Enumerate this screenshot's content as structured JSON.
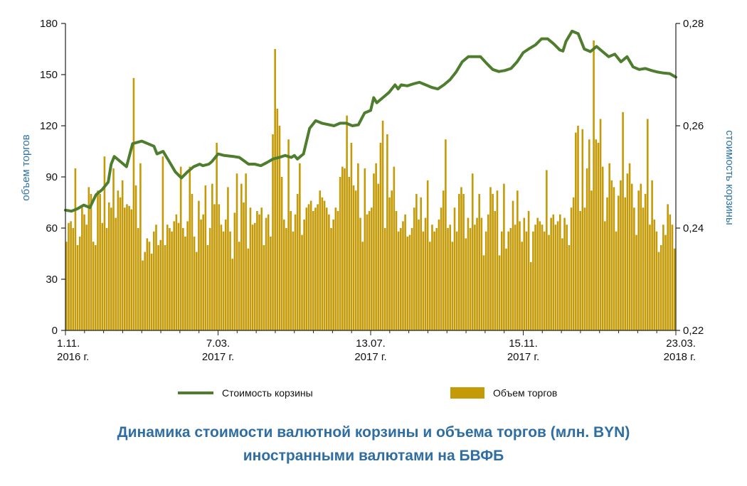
{
  "caption": {
    "line1": "Динамика стоимости валютной корзины и объема торгов (млн. BYN)",
    "line2": "иностранными валютами на БВФБ"
  },
  "colors": {
    "bars": "#c49a06",
    "line": "#4e7d2e",
    "axis_title": "#2e74a8",
    "caption": "#2f6ea3"
  },
  "chart_data": {
    "type": "bar",
    "title": "Динамика стоимости валютной корзины и объема торгов (млн. BYN) иностранными валютами на БВФБ",
    "ylabel_left": "объем торгов",
    "ylabel_right": "стоимость корзины",
    "ylim_left": [
      0,
      180
    ],
    "ylim_right": [
      0.22,
      0.28
    ],
    "left_ticks": [
      "0",
      "30",
      "60",
      "90",
      "120",
      "150",
      "180"
    ],
    "right_ticks": [
      "0,22",
      "0,24",
      "0,26",
      "0,28"
    ],
    "x_ticks": [
      {
        "line1": "1.11.",
        "line2": "2016 г."
      },
      {
        "line1": "7.03.",
        "line2": "2017 г."
      },
      {
        "line1": "13.07.",
        "line2": "2017 г."
      },
      {
        "line1": "15.11.",
        "line2": "2017 г."
      },
      {
        "line1": "23.03.",
        "line2": "2018 г."
      }
    ],
    "legend": [
      {
        "label": "Стоимость корзины",
        "type": "line"
      },
      {
        "label": "Объем торгов",
        "type": "bar"
      }
    ],
    "series": [
      {
        "name": "Объем торгов",
        "type": "bar",
        "values": [
          52,
          63,
          64,
          60,
          95,
          50,
          55,
          72,
          68,
          62,
          84,
          80,
          52,
          50,
          82,
          80,
          63,
          102,
          60,
          75,
          72,
          95,
          66,
          82,
          78,
          88,
          72,
          74,
          73,
          71,
          148,
          85,
          60,
          98,
          41,
          46,
          54,
          52,
          45,
          58,
          62,
          50,
          53,
          102,
          50,
          62,
          60,
          58,
          64,
          68,
          63,
          96,
          60,
          55,
          64,
          96,
          80,
          55,
          46,
          76,
          65,
          68,
          85,
          50,
          60,
          86,
          74,
          110,
          74,
          62,
          58,
          65,
          84,
          58,
          42,
          69,
          92,
          52,
          86,
          75,
          92,
          48,
          72,
          62,
          63,
          70,
          68,
          72,
          50,
          66,
          68,
          55,
          115,
          165,
          130,
          120,
          90,
          65,
          60,
          112,
          70,
          58,
          68,
          80,
          98,
          56,
          65,
          72,
          74,
          76,
          70,
          72,
          74,
          82,
          78,
          76,
          72,
          68,
          60,
          65,
          72,
          70,
          90,
          96,
          95,
          126,
          90,
          110,
          85,
          82,
          98,
          66,
          52,
          95,
          68,
          70,
          72,
          92,
          98,
          86,
          110,
          123,
          60,
          115,
          78,
          82,
          96,
          70,
          58,
          60,
          64,
          68,
          55,
          56,
          60,
          72,
          80,
          65,
          78,
          58,
          66,
          88,
          52,
          62,
          58,
          60,
          65,
          72,
          82,
          112,
          60,
          62,
          52,
          72,
          58,
          80,
          84,
          80,
          54,
          66,
          60,
          92,
          62,
          66,
          80,
          66,
          44,
          58,
          68,
          84,
          80,
          70,
          82,
          44,
          58,
          86,
          48,
          58,
          60,
          76,
          62,
          82,
          64,
          52,
          66,
          58,
          70,
          40,
          58,
          62,
          66,
          64,
          62,
          58,
          94,
          56,
          66,
          68,
          62,
          64,
          68,
          54,
          66,
          62,
          50,
          72,
          78,
          116,
          120,
          70,
          118,
          72,
          95,
          112,
          82,
          170,
          112,
          110,
          124,
          96,
          64,
          78,
          98,
          88,
          84,
          58,
          79,
          88,
          128,
          78,
          92,
          98,
          86,
          72,
          56,
          82,
          86,
          72,
          80,
          124,
          62,
          88,
          65,
          58,
          46,
          50,
          62,
          56,
          74,
          68,
          62,
          48
        ]
      },
      {
        "name": "Стоимость корзины",
        "type": "line",
        "x_norm": [
          0,
          0.01,
          0.02,
          0.03,
          0.04,
          0.05,
          0.06,
          0.07,
          0.075,
          0.08,
          0.09,
          0.1,
          0.11,
          0.125,
          0.135,
          0.145,
          0.15,
          0.16,
          0.17,
          0.18,
          0.19,
          0.2,
          0.21,
          0.22,
          0.225,
          0.235,
          0.24,
          0.25,
          0.26,
          0.275,
          0.285,
          0.3,
          0.31,
          0.32,
          0.33,
          0.34,
          0.35,
          0.36,
          0.37,
          0.375,
          0.38,
          0.39,
          0.4,
          0.41,
          0.42,
          0.44,
          0.45,
          0.46,
          0.47,
          0.48,
          0.49,
          0.5,
          0.505,
          0.51,
          0.52,
          0.53,
          0.54,
          0.545,
          0.55,
          0.56,
          0.57,
          0.58,
          0.59,
          0.6,
          0.61,
          0.62,
          0.63,
          0.64,
          0.65,
          0.66,
          0.67,
          0.68,
          0.69,
          0.7,
          0.71,
          0.72,
          0.73,
          0.74,
          0.75,
          0.76,
          0.77,
          0.78,
          0.79,
          0.8,
          0.81,
          0.815,
          0.82,
          0.83,
          0.84,
          0.85,
          0.86,
          0.87,
          0.88,
          0.89,
          0.9,
          0.91,
          0.92,
          0.93,
          0.94,
          0.95,
          0.96,
          0.97,
          0.98,
          0.99,
          1
        ],
        "values": [
          0.2435,
          0.2433,
          0.2438,
          0.2445,
          0.244,
          0.2465,
          0.2475,
          0.249,
          0.2525,
          0.254,
          0.253,
          0.252,
          0.2565,
          0.257,
          0.2565,
          0.256,
          0.2545,
          0.255,
          0.253,
          0.251,
          0.2498,
          0.251,
          0.252,
          0.2525,
          0.2522,
          0.2525,
          0.253,
          0.2545,
          0.2542,
          0.254,
          0.2538,
          0.2525,
          0.2525,
          0.2522,
          0.2528,
          0.2535,
          0.2538,
          0.2542,
          0.2538,
          0.2542,
          0.2535,
          0.2545,
          0.2595,
          0.261,
          0.2605,
          0.26,
          0.2605,
          0.2605,
          0.26,
          0.2602,
          0.2625,
          0.263,
          0.2655,
          0.2645,
          0.2655,
          0.2665,
          0.268,
          0.2672,
          0.268,
          0.2678,
          0.2682,
          0.2685,
          0.268,
          0.2675,
          0.2672,
          0.268,
          0.269,
          0.2705,
          0.2725,
          0.2735,
          0.2735,
          0.2735,
          0.2722,
          0.271,
          0.2706,
          0.2708,
          0.2712,
          0.2725,
          0.2743,
          0.2751,
          0.2758,
          0.277,
          0.277,
          0.276,
          0.2748,
          0.2746,
          0.2765,
          0.2785,
          0.278,
          0.275,
          0.2745,
          0.2755,
          0.2745,
          0.2735,
          0.274,
          0.2725,
          0.2735,
          0.2715,
          0.271,
          0.2712,
          0.2708,
          0.2705,
          0.2703,
          0.2702,
          0.2695
        ]
      }
    ]
  }
}
